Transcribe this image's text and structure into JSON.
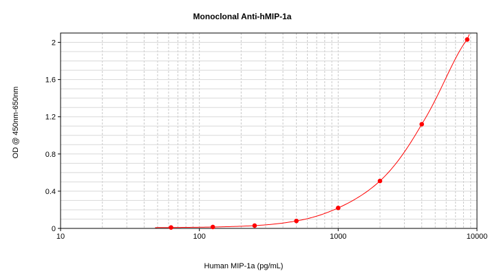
{
  "chart_data": {
    "type": "scatter",
    "title": "Monoclonal Anti-hMIP-1a",
    "xlabel": "Human MIP-1a (pg/mL)",
    "ylabel": "OD @ 450nm-650nm",
    "x_scale": "log",
    "xlim": [
      10,
      10000
    ],
    "ylim": [
      0,
      2.1
    ],
    "x_ticks": [
      10,
      100,
      1000,
      10000
    ],
    "x_tick_labels": [
      "10",
      "100",
      "1000",
      "10000"
    ],
    "y_ticks": [
      0,
      0.4,
      0.8,
      1.2,
      1.6,
      2
    ],
    "y_tick_labels": [
      "0",
      "0.4",
      "0.8",
      "1.2",
      "1.6",
      "2"
    ],
    "grid": true,
    "series": [
      {
        "values_x": [
          62.5,
          125,
          250,
          500,
          1000,
          2000,
          4000,
          8500
        ],
        "values_y": [
          0.01,
          0.015,
          0.03,
          0.08,
          0.22,
          0.51,
          1.12,
          2.03
        ],
        "color": "#ff0000"
      }
    ],
    "fit_curve_color": "#ff0000"
  }
}
